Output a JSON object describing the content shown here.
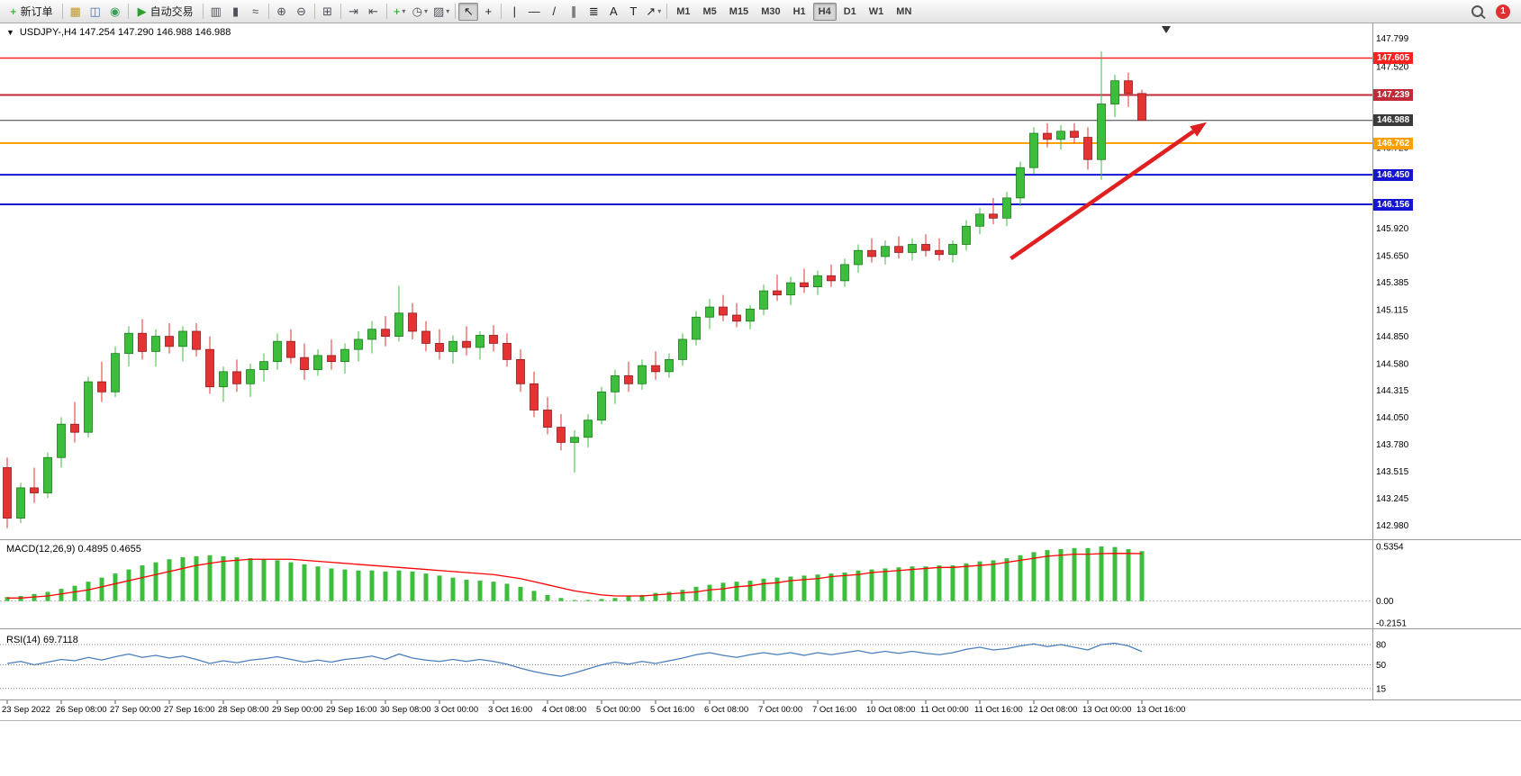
{
  "toolbar": {
    "notification_count": "1",
    "dropdown_glyph": "▾",
    "groups": [
      {
        "type": "labeled",
        "name": "new-order-button",
        "label": "新订单",
        "icon": "new-order-plus-icon",
        "glyph": "+",
        "glyph_color": "#18a018",
        "dropdown": false
      },
      {
        "type": "icons",
        "items": [
          {
            "name": "charts-window-icon",
            "glyph": "▦",
            "color": "#b8962e"
          },
          {
            "name": "market-watch-icon",
            "glyph": "◫",
            "color": "#4a6fae"
          },
          {
            "name": "navigator-icon",
            "glyph": "◉",
            "color": "#3a9d57"
          }
        ]
      },
      {
        "type": "labeled",
        "name": "auto-trading-button",
        "label": "自动交易",
        "icon": "auto-trading-play-icon",
        "glyph": "▶",
        "glyph_color": "#2e9e2e",
        "dropdown": false
      },
      {
        "type": "icons",
        "items": [
          {
            "name": "bar-chart-icon",
            "glyph": "▥",
            "color": "#50505a"
          },
          {
            "name": "candlestick-chart-icon",
            "glyph": "▮",
            "color": "#50505a"
          },
          {
            "name": "line-chart-icon",
            "glyph": "≈",
            "color": "#50505a"
          }
        ]
      },
      {
        "type": "icons",
        "items": [
          {
            "name": "zoom-in-icon",
            "glyph": "⊕",
            "color": "#50505a"
          },
          {
            "name": "zoom-out-icon",
            "glyph": "⊖",
            "color": "#50505a"
          }
        ]
      },
      {
        "type": "icons",
        "items": [
          {
            "name": "tile-windows-icon",
            "glyph": "⊞",
            "color": "#50505a"
          }
        ]
      },
      {
        "type": "icons",
        "items": [
          {
            "name": "autoscroll-icon",
            "glyph": "⇥",
            "color": "#50505a"
          },
          {
            "name": "chart-shift-icon",
            "glyph": "⇤",
            "color": "#50505a"
          }
        ]
      },
      {
        "type": "icons",
        "items": [
          {
            "name": "new-chart-icon",
            "glyph": "+",
            "color": "#18a018",
            "dropdown": true
          },
          {
            "name": "periods-icon",
            "glyph": "◷",
            "color": "#50505a",
            "dropdown": true
          },
          {
            "name": "templates-icon",
            "glyph": "▨",
            "color": "#50505a",
            "dropdown": true
          }
        ]
      },
      {
        "type": "icons",
        "items": [
          {
            "name": "cursor-icon",
            "glyph": "↖",
            "color": "#222",
            "active": true
          },
          {
            "name": "crosshair-icon",
            "glyph": "+",
            "color": "#222"
          }
        ]
      },
      {
        "type": "icons",
        "items": [
          {
            "name": "vertical-line-icon",
            "glyph": "|",
            "color": "#222"
          },
          {
            "name": "horizontal-line-icon",
            "glyph": "—",
            "color": "#222"
          },
          {
            "name": "trendline-icon",
            "glyph": "/",
            "color": "#222"
          },
          {
            "name": "equidistant-channel-icon",
            "glyph": "∥",
            "color": "#222"
          },
          {
            "name": "fibonacci-icon",
            "glyph": "≣",
            "color": "#222"
          },
          {
            "name": "text-icon",
            "glyph": "A",
            "color": "#222"
          },
          {
            "name": "text-label-icon",
            "glyph": "T",
            "color": "#222"
          },
          {
            "name": "arrows-icon",
            "glyph": "↗",
            "color": "#222",
            "dropdown": true
          }
        ]
      },
      {
        "type": "timeframes",
        "items": [
          "M1",
          "M5",
          "M15",
          "M30",
          "H1",
          "H4",
          "D1",
          "W1",
          "MN"
        ],
        "active": "H4"
      }
    ]
  },
  "chart": {
    "one_click_glyph": "▼",
    "symbol": "USDJPY-",
    "period": "H4",
    "title": "USDJPY-,H4 147.254 147.290 146.988 146.988",
    "ohlc": {
      "open": "147.254",
      "high": "147.290",
      "low": "146.988",
      "close": "146.988"
    },
    "colors": {
      "up": "#3CBE3C",
      "up_border": "#1C7A1C",
      "down": "#E53232",
      "down_border": "#8F1D1D",
      "macd_bar": "#3CBE3C",
      "macd_signal": "#FF0000",
      "rsi_line": "#4A7EBB",
      "arrow": "#E02020"
    },
    "hlines": [
      {
        "price": 147.605,
        "label": "147.605",
        "color": "#FF2020",
        "width": 1.5
      },
      {
        "price": 147.239,
        "label": "147.239",
        "color": "#C22A3A",
        "width": 2
      },
      {
        "price": 146.988,
        "label": "146.988",
        "color": "#3A3A3A",
        "width": 1
      },
      {
        "price": 146.762,
        "label": "146.762",
        "color": "#FFA000",
        "width": 2
      },
      {
        "price": 146.45,
        "label": "146.450",
        "color": "#1414D2",
        "width": 2
      },
      {
        "price": 146.156,
        "label": "146.156",
        "color": "#1414D2",
        "width": 2
      }
    ],
    "price_axis_labels": [
      "147.799",
      "147.520",
      "146.720",
      "145.920",
      "145.650",
      "145.385",
      "145.115",
      "144.850",
      "144.580",
      "144.315",
      "144.050",
      "143.780",
      "143.515",
      "143.245",
      "142.980"
    ]
  },
  "macd": {
    "label": "MACD(12,26,9) 0.4895 0.4655",
    "main_value": "0.4895",
    "signal_value": "0.4655",
    "axis_labels": [
      "0.5354",
      "0.00",
      "-0.2151"
    ]
  },
  "rsi": {
    "label": "RSI(14) 69.7118",
    "value": "69.7118",
    "axis_labels": [
      "80",
      "50",
      "15"
    ]
  },
  "chart_data": {
    "type": "candlestick",
    "symbol": "USDJPY",
    "timeframe": "H4",
    "price_range": [
      142.85,
      147.93
    ],
    "label_every": 4,
    "x_labels": [
      "23 Sep 2022",
      "26 Sep 08:00",
      "27 Sep 00:00",
      "27 Sep 16:00",
      "28 Sep 08:00",
      "29 Sep 00:00",
      "29 Sep 16:00",
      "30 Sep 08:00",
      "3 Oct 00:00",
      "3 Oct 16:00",
      "4 Oct 08:00",
      "5 Oct 00:00",
      "5 Oct 16:00",
      "6 Oct 08:00",
      "7 Oct 00:00",
      "7 Oct 16:00",
      "10 Oct 08:00",
      "11 Oct 00:00",
      "11 Oct 16:00",
      "12 Oct 08:00",
      "13 Oct 00:00",
      "13 Oct 16:00"
    ],
    "candles": [
      [
        143.55,
        143.65,
        142.95,
        143.05
      ],
      [
        143.05,
        143.4,
        143.0,
        143.35
      ],
      [
        143.35,
        143.55,
        143.2,
        143.3
      ],
      [
        143.3,
        143.7,
        143.25,
        143.65
      ],
      [
        143.65,
        144.05,
        143.55,
        143.98
      ],
      [
        143.98,
        144.2,
        143.8,
        143.9
      ],
      [
        143.9,
        144.45,
        143.85,
        144.4
      ],
      [
        144.4,
        144.6,
        144.2,
        144.3
      ],
      [
        144.3,
        144.75,
        144.25,
        144.68
      ],
      [
        144.68,
        144.95,
        144.55,
        144.88
      ],
      [
        144.88,
        145.02,
        144.62,
        144.7
      ],
      [
        144.7,
        144.92,
        144.55,
        144.85
      ],
      [
        144.85,
        144.98,
        144.68,
        144.75
      ],
      [
        144.75,
        144.95,
        144.6,
        144.9
      ],
      [
        144.9,
        144.98,
        144.65,
        144.72
      ],
      [
        144.72,
        144.85,
        144.28,
        144.35
      ],
      [
        144.35,
        144.55,
        144.2,
        144.5
      ],
      [
        144.5,
        144.62,
        144.3,
        144.38
      ],
      [
        144.38,
        144.58,
        144.25,
        144.52
      ],
      [
        144.52,
        144.68,
        144.4,
        144.6
      ],
      [
        144.6,
        144.88,
        144.52,
        144.8
      ],
      [
        144.8,
        144.92,
        144.58,
        144.64
      ],
      [
        144.64,
        144.78,
        144.42,
        144.52
      ],
      [
        144.52,
        144.72,
        144.46,
        144.66
      ],
      [
        144.66,
        144.82,
        144.52,
        144.6
      ],
      [
        144.6,
        144.78,
        144.48,
        144.72
      ],
      [
        144.72,
        144.9,
        144.6,
        144.82
      ],
      [
        144.82,
        145.0,
        144.68,
        144.92
      ],
      [
        144.92,
        145.05,
        144.75,
        144.85
      ],
      [
        144.85,
        145.35,
        144.8,
        145.08
      ],
      [
        145.08,
        145.18,
        144.82,
        144.9
      ],
      [
        144.9,
        145.0,
        144.7,
        144.78
      ],
      [
        144.78,
        144.92,
        144.62,
        144.7
      ],
      [
        144.7,
        144.86,
        144.58,
        144.8
      ],
      [
        144.8,
        144.95,
        144.66,
        144.74
      ],
      [
        144.74,
        144.9,
        144.62,
        144.86
      ],
      [
        144.86,
        144.96,
        144.7,
        144.78
      ],
      [
        144.78,
        144.88,
        144.55,
        144.62
      ],
      [
        144.62,
        144.72,
        144.3,
        144.38
      ],
      [
        144.38,
        144.5,
        144.05,
        144.12
      ],
      [
        144.12,
        144.25,
        143.88,
        143.95
      ],
      [
        143.95,
        144.08,
        143.72,
        143.8
      ],
      [
        143.8,
        143.92,
        143.5,
        143.85
      ],
      [
        143.85,
        144.08,
        143.75,
        144.02
      ],
      [
        144.02,
        144.35,
        143.98,
        144.3
      ],
      [
        144.3,
        144.52,
        144.18,
        144.46
      ],
      [
        144.46,
        144.6,
        144.3,
        144.38
      ],
      [
        144.38,
        144.62,
        144.32,
        144.56
      ],
      [
        144.56,
        144.7,
        144.42,
        144.5
      ],
      [
        144.5,
        144.68,
        144.44,
        144.62
      ],
      [
        144.62,
        144.88,
        144.56,
        144.82
      ],
      [
        144.82,
        145.1,
        144.76,
        145.04
      ],
      [
        145.04,
        145.22,
        144.92,
        145.14
      ],
      [
        145.14,
        145.26,
        145.0,
        145.06
      ],
      [
        145.06,
        145.18,
        144.94,
        145.0
      ],
      [
        145.0,
        145.16,
        144.92,
        145.12
      ],
      [
        145.12,
        145.36,
        145.06,
        145.3
      ],
      [
        145.3,
        145.46,
        145.2,
        145.26
      ],
      [
        145.26,
        145.44,
        145.16,
        145.38
      ],
      [
        145.38,
        145.52,
        145.28,
        145.34
      ],
      [
        145.34,
        145.5,
        145.26,
        145.45
      ],
      [
        145.45,
        145.56,
        145.34,
        145.4
      ],
      [
        145.4,
        145.62,
        145.34,
        145.56
      ],
      [
        145.56,
        145.76,
        145.48,
        145.7
      ],
      [
        145.7,
        145.82,
        145.58,
        145.64
      ],
      [
        145.64,
        145.8,
        145.56,
        145.74
      ],
      [
        145.74,
        145.84,
        145.62,
        145.68
      ],
      [
        145.68,
        145.82,
        145.6,
        145.76
      ],
      [
        145.76,
        145.86,
        145.64,
        145.7
      ],
      [
        145.7,
        145.82,
        145.6,
        145.66
      ],
      [
        145.66,
        145.8,
        145.58,
        145.76
      ],
      [
        145.76,
        146.0,
        145.7,
        145.94
      ],
      [
        145.94,
        146.12,
        145.86,
        146.06
      ],
      [
        146.06,
        146.22,
        145.96,
        146.02
      ],
      [
        146.02,
        146.28,
        145.94,
        146.22
      ],
      [
        146.22,
        146.58,
        146.14,
        146.52
      ],
      [
        146.52,
        146.92,
        146.46,
        146.86
      ],
      [
        146.86,
        146.96,
        146.72,
        146.8
      ],
      [
        146.8,
        146.94,
        146.7,
        146.88
      ],
      [
        146.88,
        146.96,
        146.76,
        146.82
      ],
      [
        146.82,
        146.92,
        146.5,
        146.6
      ],
      [
        146.6,
        147.67,
        146.4,
        147.15
      ],
      [
        147.15,
        147.44,
        147.02,
        147.38
      ],
      [
        147.38,
        147.46,
        147.12,
        147.254
      ],
      [
        147.254,
        147.29,
        146.988,
        146.988
      ]
    ],
    "macd": {
      "params": [
        12,
        26,
        9
      ],
      "range": [
        -0.25,
        0.58
      ],
      "histogram": [
        0.04,
        0.05,
        0.07,
        0.09,
        0.12,
        0.15,
        0.19,
        0.23,
        0.27,
        0.31,
        0.35,
        0.38,
        0.41,
        0.43,
        0.44,
        0.45,
        0.44,
        0.43,
        0.42,
        0.41,
        0.4,
        0.38,
        0.36,
        0.34,
        0.32,
        0.31,
        0.3,
        0.3,
        0.29,
        0.3,
        0.29,
        0.27,
        0.25,
        0.23,
        0.21,
        0.2,
        0.19,
        0.17,
        0.14,
        0.1,
        0.06,
        0.03,
        0.01,
        0.01,
        0.02,
        0.03,
        0.05,
        0.06,
        0.08,
        0.09,
        0.11,
        0.14,
        0.16,
        0.18,
        0.19,
        0.2,
        0.22,
        0.23,
        0.24,
        0.25,
        0.26,
        0.27,
        0.28,
        0.3,
        0.31,
        0.32,
        0.33,
        0.34,
        0.34,
        0.35,
        0.35,
        0.37,
        0.39,
        0.4,
        0.42,
        0.45,
        0.48,
        0.5,
        0.51,
        0.52,
        0.52,
        0.5354,
        0.53,
        0.51,
        0.4895
      ],
      "signal": [
        0.03,
        0.03,
        0.04,
        0.05,
        0.07,
        0.09,
        0.11,
        0.14,
        0.17,
        0.2,
        0.23,
        0.26,
        0.29,
        0.32,
        0.35,
        0.37,
        0.39,
        0.4,
        0.41,
        0.41,
        0.41,
        0.41,
        0.4,
        0.39,
        0.38,
        0.37,
        0.36,
        0.35,
        0.34,
        0.33,
        0.32,
        0.31,
        0.3,
        0.29,
        0.28,
        0.27,
        0.26,
        0.24,
        0.22,
        0.19,
        0.16,
        0.13,
        0.1,
        0.08,
        0.06,
        0.05,
        0.05,
        0.05,
        0.06,
        0.07,
        0.08,
        0.09,
        0.11,
        0.12,
        0.14,
        0.15,
        0.17,
        0.18,
        0.2,
        0.21,
        0.22,
        0.24,
        0.25,
        0.26,
        0.28,
        0.29,
        0.3,
        0.31,
        0.32,
        0.33,
        0.33,
        0.34,
        0.35,
        0.36,
        0.38,
        0.4,
        0.42,
        0.44,
        0.45,
        0.46,
        0.46,
        0.465,
        0.468,
        0.467,
        0.4655
      ]
    },
    "rsi": {
      "period": 14,
      "range": [
        0,
        100
      ],
      "levels": [
        80,
        50,
        15
      ],
      "values": [
        52,
        55,
        50,
        54,
        58,
        56,
        61,
        57,
        62,
        66,
        61,
        64,
        60,
        63,
        58,
        52,
        56,
        53,
        57,
        59,
        62,
        58,
        54,
        57,
        54,
        58,
        60,
        63,
        58,
        66,
        60,
        57,
        55,
        58,
        55,
        58,
        55,
        51,
        45,
        40,
        36,
        33,
        38,
        44,
        50,
        54,
        51,
        55,
        52,
        56,
        60,
        65,
        68,
        64,
        61,
        65,
        68,
        65,
        68,
        64,
        68,
        65,
        68,
        71,
        67,
        70,
        67,
        70,
        67,
        65,
        68,
        73,
        76,
        72,
        74,
        78,
        81,
        77,
        80,
        76,
        72,
        80,
        82,
        78,
        69.7118
      ]
    },
    "hline_prices": [
      147.605,
      147.239,
      146.988,
      146.762,
      146.45,
      146.156
    ],
    "arrow": {
      "from": {
        "index": 74.3,
        "price": 145.62
      },
      "to": {
        "index": 88.8,
        "price": 146.97
      }
    },
    "shift_marker_index": 85.8
  }
}
